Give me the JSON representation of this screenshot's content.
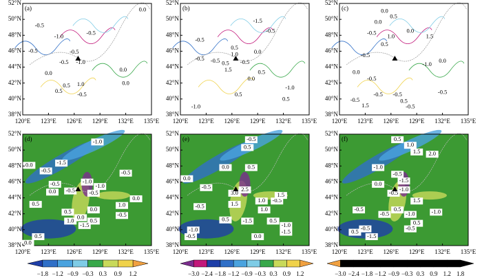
{
  "lat_ticks": [
    "38°N",
    "40°N",
    "42°N",
    "44°N",
    "46°N",
    "48°N",
    "50°N",
    "52°N"
  ],
  "lon_ticks": [
    "120°E",
    "123°E",
    "126°E",
    "129°E",
    "132°E",
    "135°E"
  ],
  "panels": [
    {
      "label": "(a)",
      "contour_labels": [
        "0.0",
        "-0.5",
        "-1.0",
        "-0.5",
        "-0.5",
        "-0.5",
        "-1.0",
        "-0.5",
        "0.0",
        "0.0",
        "0.0",
        "0.5",
        "1.0",
        "-0.5",
        "0.5"
      ]
    },
    {
      "label": "(b)",
      "contour_labels": [
        "-1.5",
        "-0.5",
        "-0.5",
        "0.5",
        "1.0",
        "0.0",
        "-0.5",
        "-0.5",
        "0.5",
        "-0.5",
        "1.5",
        "0.5",
        "0.0",
        "0.5",
        "-1.0",
        "0.5",
        "-1.0"
      ]
    },
    {
      "label": "(c)",
      "contour_labels": [
        "0.0",
        "0.5",
        "0.0",
        "-0.5",
        "1.0",
        "0.0",
        "1.5",
        "0.5",
        "-0.5",
        "-1.0",
        "0.0",
        "0.0",
        "-0.5",
        "-0.5",
        "-0.5",
        "-0.5",
        "1.5",
        "0.5",
        "-0.5",
        "-0.5"
      ]
    },
    {
      "label": "(d)",
      "contour_labels": [
        "-1.0",
        "0.0",
        "-1.5",
        "-0.5",
        "-0.5",
        "-1.0",
        "-0.5",
        "0.0",
        "-1.0",
        "-0.5",
        "-0.5",
        "0.0",
        "0.5",
        "0.5",
        "0.0",
        "1.0",
        "0.0",
        "1.0",
        "0.5",
        "-0.5",
        "-1.5",
        "0.5",
        "0.0"
      ]
    },
    {
      "label": "(e)",
      "contour_labels": [
        "-0.5",
        "0.0",
        "0.5",
        "0.0",
        "-0.5",
        "0.5",
        "2.5",
        "3.0",
        "1.0",
        "1.5",
        "-0.5",
        "-0.5",
        "1.0",
        "1.5",
        "0.5",
        "-1.5",
        "-1.0",
        "-0.5",
        "0.0",
        "0.5",
        "-1.0",
        "-1.5"
      ]
    },
    {
      "label": "(f)",
      "contour_labels": [
        "0.5",
        "1.0",
        "1.5",
        "2.0",
        "-1.0",
        "-0.5",
        "-1.5",
        "-1.0",
        "-0.5",
        "0.0",
        "-0.5",
        "0.5",
        "-0.5",
        "-1.0",
        "0.5",
        "-1.0",
        "1.5",
        "-0.5",
        "-0.5",
        "0.5",
        "-1.5"
      ]
    }
  ],
  "colorbars": [
    {
      "labels": [
        "−1.8",
        "−1.2",
        "−0.9",
        "−0.3",
        "0.3",
        "0.9",
        "1.2"
      ]
    },
    {
      "labels": [
        "−3.0",
        "−2.4",
        "−1.8",
        "−1.2",
        "−0.9",
        "−0.3",
        "0.3",
        "0.9",
        "1.2"
      ]
    },
    {
      "labels": [
        "−3.0",
        "−2.4",
        "−1.8",
        "−1.2",
        "−0.9",
        "−0.3",
        "0.3",
        "0.9",
        "1.2",
        "1.8"
      ]
    }
  ]
}
